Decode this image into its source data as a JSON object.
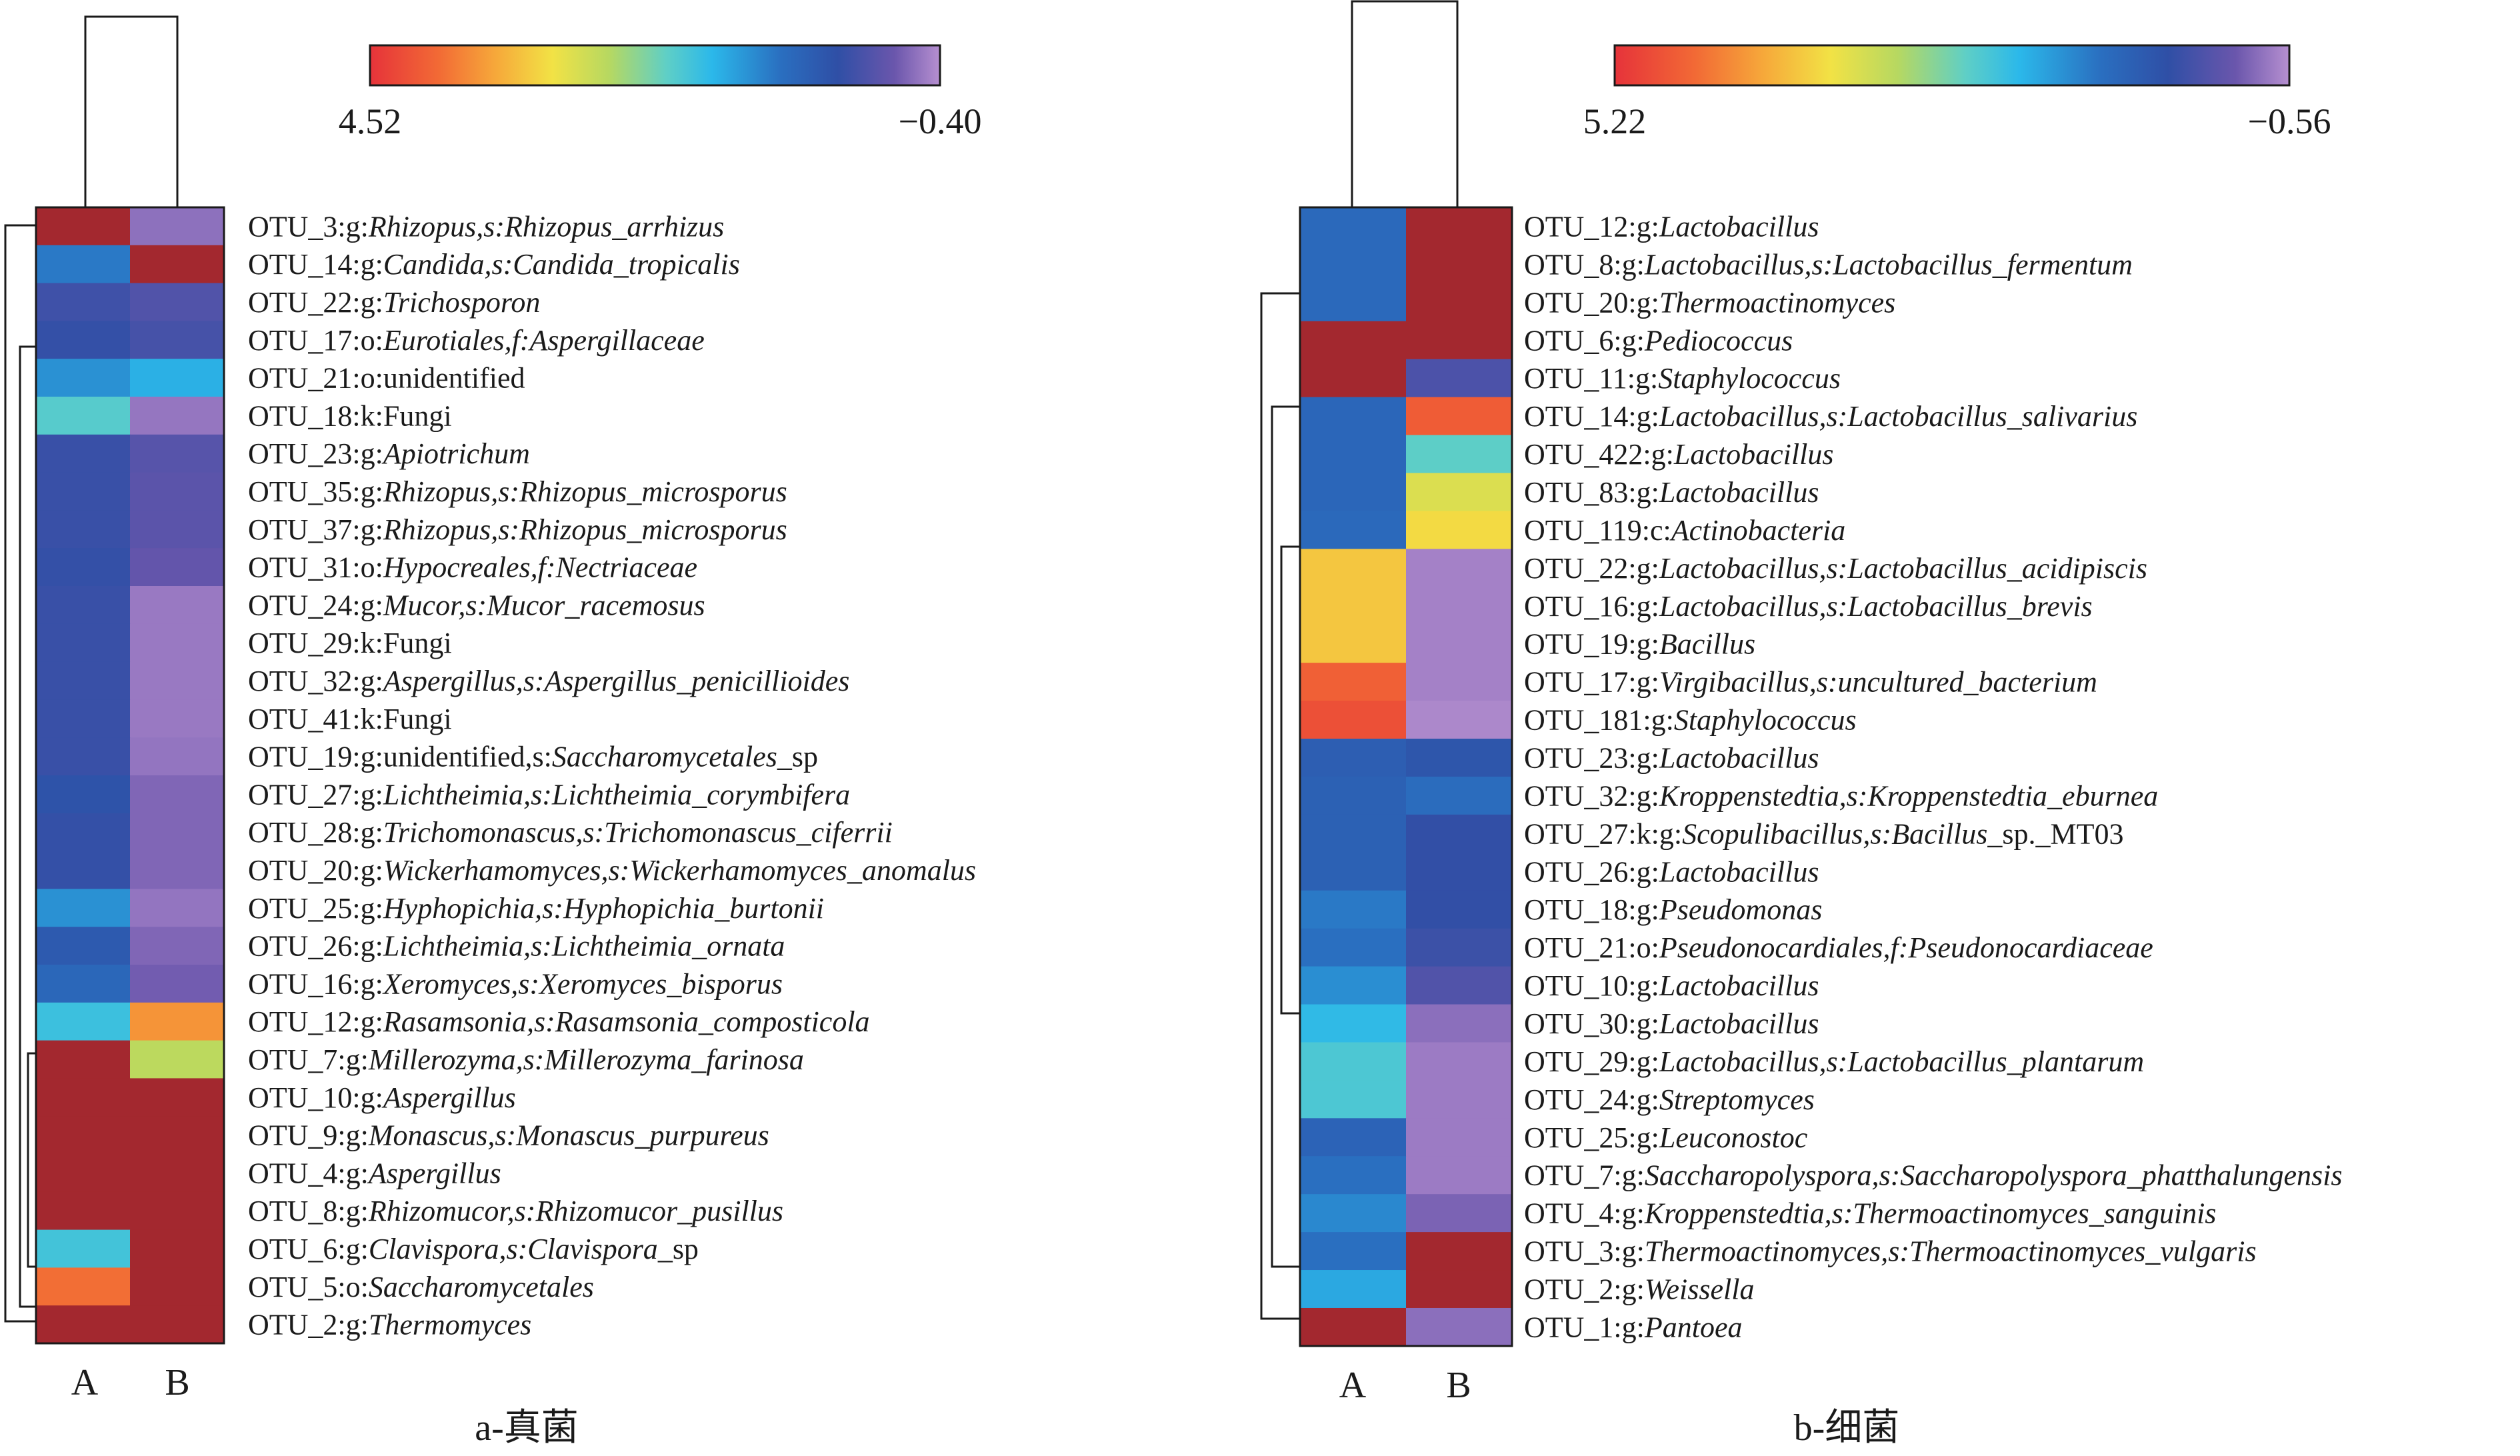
{
  "chart_data": [
    {
      "type": "heatmap",
      "panel": "a",
      "caption": "a-真菌",
      "columns": [
        "A",
        "B"
      ],
      "colorbar": {
        "max_label": "4.52",
        "min_label": "−0.40",
        "max": 4.52,
        "min": -0.4
      },
      "rows": [
        {
          "segments": [
            {
              "t": "OTU_3:g:"
            },
            {
              "t": "Rhizopus,s:Rhizopus_arrhizus",
              "i": true
            }
          ],
          "values": [
            4.52,
            -0.19
          ]
        },
        {
          "segments": [
            {
              "t": "OTU_14:g:"
            },
            {
              "t": "Candida,s:Candida_tropicalis",
              "i": true
            }
          ],
          "values": [
            1.06,
            4.52
          ]
        },
        {
          "segments": [
            {
              "t": "OTU_22:g:"
            },
            {
              "t": "Trichosporon",
              "i": true
            }
          ],
          "values": [
            0.35,
            0.2
          ]
        },
        {
          "segments": [
            {
              "t": "OTU_17:o:"
            },
            {
              "t": "Eurotiales,f:Aspergillaceae",
              "i": true
            }
          ],
          "values": [
            0.44,
            0.29
          ]
        },
        {
          "segments": [
            {
              "t": "OTU_21:o:unidentified"
            }
          ],
          "values": [
            1.25,
            1.5
          ]
        },
        {
          "segments": [
            {
              "t": "OTU_18:k:Fungi"
            }
          ],
          "values": [
            1.9,
            -0.23
          ]
        },
        {
          "segments": [
            {
              "t": "OTU_23:g:"
            },
            {
              "t": "Apiotrichum",
              "i": true
            }
          ],
          "values": [
            0.4,
            0.15
          ]
        },
        {
          "segments": [
            {
              "t": "OTU_35:g:"
            },
            {
              "t": "Rhizopus,s:Rhizopus_microsporus",
              "i": true
            }
          ],
          "values": [
            0.4,
            0.12
          ]
        },
        {
          "segments": [
            {
              "t": "OTU_37:g:"
            },
            {
              "t": "Rhizopus,s:Rhizopus_microsporus",
              "i": true
            }
          ],
          "values": [
            0.4,
            0.12
          ]
        },
        {
          "segments": [
            {
              "t": "OTU_31:o:"
            },
            {
              "t": "Hypocreales,f:Nectriaceae",
              "i": true
            }
          ],
          "values": [
            0.44,
            0.05
          ]
        },
        {
          "segments": [
            {
              "t": "OTU_24:g:"
            },
            {
              "t": "Mucor,s:Mucor_racemosus",
              "i": true
            }
          ],
          "values": [
            0.4,
            -0.25
          ]
        },
        {
          "segments": [
            {
              "t": "OTU_29:k:Fungi"
            }
          ],
          "values": [
            0.4,
            -0.25
          ]
        },
        {
          "segments": [
            {
              "t": "OTU_32:g:"
            },
            {
              "t": "Aspergillus,s:Aspergillus_penicillioides",
              "i": true
            }
          ],
          "values": [
            0.4,
            -0.25
          ]
        },
        {
          "segments": [
            {
              "t": "OTU_41:k:Fungi"
            }
          ],
          "values": [
            0.4,
            -0.25
          ]
        },
        {
          "segments": [
            {
              "t": "OTU_19:g:unidentified,s:"
            },
            {
              "t": "Saccharomycetales",
              "i": true
            },
            {
              "t": "_sp"
            }
          ],
          "values": [
            0.4,
            -0.22
          ]
        },
        {
          "segments": [
            {
              "t": "OTU_27:g:"
            },
            {
              "t": "Lichtheimia,s:Lichtheimia_corymbifera",
              "i": true
            }
          ],
          "values": [
            0.55,
            -0.12
          ]
        },
        {
          "segments": [
            {
              "t": "OTU_28:g:"
            },
            {
              "t": "Trichomonascus,s:Trichomonascus_ciferrii",
              "i": true
            }
          ],
          "values": [
            0.44,
            -0.12
          ]
        },
        {
          "segments": [
            {
              "t": "OTU_20:g:"
            },
            {
              "t": "Wickerhamomyces,s:Wickerhamomyces_anomalus",
              "i": true
            }
          ],
          "values": [
            0.44,
            -0.12
          ]
        },
        {
          "segments": [
            {
              "t": "OTU_25:g:"
            },
            {
              "t": "Hyphopichia,s:Hyphopichia_burtonii",
              "i": true
            }
          ],
          "values": [
            1.25,
            -0.22
          ]
        },
        {
          "segments": [
            {
              "t": "OTU_26:g:"
            },
            {
              "t": "Lichtheimia,s:Lichtheimia_ornata",
              "i": true
            }
          ],
          "values": [
            0.65,
            -0.12
          ]
        },
        {
          "segments": [
            {
              "t": "OTU_16:g:"
            },
            {
              "t": "Xeromyces,s:Xeromyces_bisporus",
              "i": true
            }
          ],
          "values": [
            0.85,
            -0.05
          ]
        },
        {
          "segments": [
            {
              "t": "OTU_12:g:"
            },
            {
              "t": "Rasamsonia,s:Rasamsonia_composticola",
              "i": true
            }
          ],
          "values": [
            1.7,
            3.6
          ]
        },
        {
          "segments": [
            {
              "t": "OTU_7:g:"
            },
            {
              "t": "Millerozyma,s:Millerozyma_farinosa",
              "i": true
            }
          ],
          "values": [
            4.52,
            2.5
          ]
        },
        {
          "segments": [
            {
              "t": "OTU_10:g:"
            },
            {
              "t": "Aspergillus",
              "i": true
            }
          ],
          "values": [
            4.52,
            4.52
          ]
        },
        {
          "segments": [
            {
              "t": "OTU_9:g:"
            },
            {
              "t": "Monascus,s:Monascus_purpureus",
              "i": true
            }
          ],
          "values": [
            4.52,
            4.52
          ]
        },
        {
          "segments": [
            {
              "t": "OTU_4:g:"
            },
            {
              "t": "Aspergillus",
              "i": true
            }
          ],
          "values": [
            4.52,
            4.52
          ]
        },
        {
          "segments": [
            {
              "t": "OTU_8:g:"
            },
            {
              "t": "Rhizomucor,s:Rhizomucor_pusillus",
              "i": true
            }
          ],
          "values": [
            4.52,
            4.52
          ]
        },
        {
          "segments": [
            {
              "t": "OTU_6:g:"
            },
            {
              "t": "Clavispora,s:Clavispora",
              "i": true
            },
            {
              "t": "_sp"
            }
          ],
          "values": [
            1.75,
            4.52
          ]
        },
        {
          "segments": [
            {
              "t": "OTU_5:o:"
            },
            {
              "t": "Saccharomycetales",
              "i": true
            }
          ],
          "values": [
            3.9,
            4.52
          ]
        },
        {
          "segments": [
            {
              "t": "OTU_2:g:"
            },
            {
              "t": "Thermomyces",
              "i": true
            }
          ],
          "values": [
            4.52,
            4.52
          ]
        }
      ]
    },
    {
      "type": "heatmap",
      "panel": "b",
      "caption": "b-细菌",
      "columns": [
        "A",
        "B"
      ],
      "colorbar": {
        "max_label": "5.22",
        "min_label": "−0.56",
        "max": 5.22,
        "min": -0.56
      },
      "rows": [
        {
          "segments": [
            {
              "t": "OTU_12:g:"
            },
            {
              "t": "Lactobacillus",
              "i": true
            }
          ],
          "values": [
            0.95,
            5.22
          ]
        },
        {
          "segments": [
            {
              "t": "OTU_8:g:"
            },
            {
              "t": "Lactobacillus,s:Lactobacillus_fermentum",
              "i": true
            }
          ],
          "values": [
            0.95,
            5.22
          ]
        },
        {
          "segments": [
            {
              "t": "OTU_20:g:"
            },
            {
              "t": "Thermoactinomyces",
              "i": true
            }
          ],
          "values": [
            0.95,
            5.22
          ]
        },
        {
          "segments": [
            {
              "t": "OTU_6:g:"
            },
            {
              "t": "Pediococcus",
              "i": true
            }
          ],
          "values": [
            5.22,
            5.22
          ]
        },
        {
          "segments": [
            {
              "t": "OTU_11:g:"
            },
            {
              "t": "Staphylococcus",
              "i": true
            }
          ],
          "values": [
            5.22,
            0.2
          ]
        },
        {
          "segments": [
            {
              "t": "OTU_14:g:"
            },
            {
              "t": "Lactobacillus,s:Lactobacillus_salivarius",
              "i": true
            }
          ],
          "values": [
            0.9,
            4.7
          ]
        },
        {
          "segments": [
            {
              "t": "OTU_422:g:"
            },
            {
              "t": "Lactobacillus",
              "i": true
            }
          ],
          "values": [
            0.9,
            2.2
          ]
        },
        {
          "segments": [
            {
              "t": "OTU_83:g:"
            },
            {
              "t": "Lactobacillus",
              "i": true
            }
          ],
          "values": [
            0.9,
            3.15
          ]
        },
        {
          "segments": [
            {
              "t": "OTU_119:c:"
            },
            {
              "t": "Actinobacteria",
              "i": true
            }
          ],
          "values": [
            0.95,
            3.45
          ]
        },
        {
          "segments": [
            {
              "t": "OTU_22:g:"
            },
            {
              "t": "Lactobacillus,s:Lactobacillus_acidipiscis",
              "i": true
            }
          ],
          "values": [
            3.65,
            -0.45
          ]
        },
        {
          "segments": [
            {
              "t": "OTU_16:g:"
            },
            {
              "t": "Lactobacillus,s:Lactobacillus_brevis",
              "i": true
            }
          ],
          "values": [
            3.65,
            -0.45
          ]
        },
        {
          "segments": [
            {
              "t": "OTU_19:g:"
            },
            {
              "t": "Bacillus",
              "i": true
            }
          ],
          "values": [
            3.65,
            -0.45
          ]
        },
        {
          "segments": [
            {
              "t": "OTU_17:g:"
            },
            {
              "t": "Virgibacillus,s:uncultured_bacterium",
              "i": true
            }
          ],
          "values": [
            4.65,
            -0.45
          ]
        },
        {
          "segments": [
            {
              "t": "OTU_181:g:"
            },
            {
              "t": "Staphylococcus",
              "i": true
            }
          ],
          "values": [
            4.85,
            -0.5
          ]
        },
        {
          "segments": [
            {
              "t": "OTU_23:g:"
            },
            {
              "t": "Lactobacillus",
              "i": true
            }
          ],
          "values": [
            0.75,
            0.6
          ]
        },
        {
          "segments": [
            {
              "t": "OTU_32:g:"
            },
            {
              "t": "Kroppenstedtia,s:Kroppenstedtia_eburnea",
              "i": true
            }
          ],
          "values": [
            0.8,
            1.0
          ]
        },
        {
          "segments": [
            {
              "t": "OTU_27:k:g:"
            },
            {
              "t": "Scopulibacillus,s:Bacillus",
              "i": true
            },
            {
              "t": "_sp._MT03"
            }
          ],
          "values": [
            0.8,
            0.45
          ]
        },
        {
          "segments": [
            {
              "t": "OTU_26:g:"
            },
            {
              "t": "Lactobacillus",
              "i": true
            }
          ],
          "values": [
            0.8,
            0.45
          ]
        },
        {
          "segments": [
            {
              "t": "OTU_18:g:"
            },
            {
              "t": "Pseudomonas",
              "i": true
            }
          ],
          "values": [
            1.15,
            0.45
          ]
        },
        {
          "segments": [
            {
              "t": "OTU_21:o:"
            },
            {
              "t": "Pseudonocardiales,f:Pseudonocardiaceae",
              "i": true
            }
          ],
          "values": [
            1.05,
            0.35
          ]
        },
        {
          "segments": [
            {
              "t": "OTU_10:g:"
            },
            {
              "t": "Lactobacillus",
              "i": true
            }
          ],
          "values": [
            1.35,
            0.15
          ]
        },
        {
          "segments": [
            {
              "t": "OTU_30:g:"
            },
            {
              "t": "Lactobacillus",
              "i": true
            }
          ],
          "values": [
            1.8,
            -0.3
          ]
        },
        {
          "segments": [
            {
              "t": "OTU_29:g:"
            },
            {
              "t": "Lactobacillus,s:Lactobacillus_plantarum",
              "i": true
            }
          ],
          "values": [
            2.05,
            -0.4
          ]
        },
        {
          "segments": [
            {
              "t": "OTU_24:g:"
            },
            {
              "t": "Streptomyces",
              "i": true
            }
          ],
          "values": [
            2.05,
            -0.4
          ]
        },
        {
          "segments": [
            {
              "t": "OTU_25:g:"
            },
            {
              "t": "Leuconostoc",
              "i": true
            }
          ],
          "values": [
            0.85,
            -0.4
          ]
        },
        {
          "segments": [
            {
              "t": "OTU_7:g:"
            },
            {
              "t": "Saccharopolyspora,s:Saccharopolyspora_phatthalungensis",
              "i": true
            }
          ],
          "values": [
            1.05,
            -0.4
          ]
        },
        {
          "segments": [
            {
              "t": "OTU_4:g:"
            },
            {
              "t": "Kroppenstedtia,s:Thermoactinomyces_sanguinis",
              "i": true
            }
          ],
          "values": [
            1.3,
            -0.2
          ]
        },
        {
          "segments": [
            {
              "t": "OTU_3:g:"
            },
            {
              "t": "Thermoactinomyces,s:Thermoactinomyces_vulgaris",
              "i": true
            }
          ],
          "values": [
            1.05,
            5.22
          ]
        },
        {
          "segments": [
            {
              "t": "OTU_2:g:"
            },
            {
              "t": "Weissella",
              "i": true
            }
          ],
          "values": [
            1.6,
            5.22
          ]
        },
        {
          "segments": [
            {
              "t": "OTU_1:g:"
            },
            {
              "t": "Pantoea",
              "i": true
            }
          ],
          "values": [
            5.22,
            -0.3
          ]
        }
      ]
    }
  ]
}
